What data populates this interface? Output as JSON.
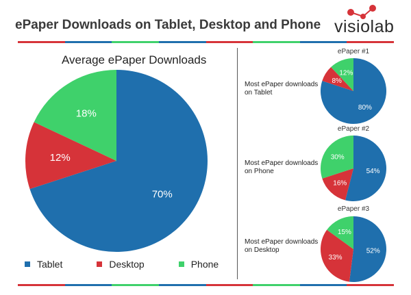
{
  "header": {
    "title": "ePaper Downloads on Tablet, Desktop and Phone",
    "logo_text": "visiolab"
  },
  "colors": {
    "tablet": "#1f6fad",
    "desktop": "#d63339",
    "phone": "#3fd16b",
    "stripe": [
      "#d63339",
      "#1f6fad",
      "#3fd16b",
      "#1f6fad",
      "#d63339",
      "#3fd16b",
      "#1f6fad",
      "#d63339"
    ],
    "logo": "#d63339"
  },
  "legend": {
    "tablet": "Tablet",
    "desktop": "Desktop",
    "phone": "Phone"
  },
  "chart_data": [
    {
      "type": "pie",
      "title": "Average ePaper Downloads",
      "labels": [
        "Tablet",
        "Desktop",
        "Phone"
      ],
      "values": [
        70,
        12,
        18
      ],
      "value_labels": [
        "70%",
        "12%",
        "18%"
      ]
    },
    {
      "type": "pie",
      "title": "ePaper #1",
      "subtitle": "Most ePaper downloads on Tablet",
      "labels": [
        "Tablet",
        "Desktop",
        "Phone"
      ],
      "values": [
        80,
        8,
        12
      ],
      "value_labels": [
        "80%",
        "8%",
        "12%"
      ]
    },
    {
      "type": "pie",
      "title": "ePaper #2",
      "subtitle": "Most ePaper downloads on Phone",
      "labels": [
        "Tablet",
        "Desktop",
        "Phone"
      ],
      "values": [
        54,
        16,
        30
      ],
      "value_labels": [
        "54%",
        "16%",
        "30%"
      ]
    },
    {
      "type": "pie",
      "title": "ePaper #3",
      "subtitle": "Most ePaper downloads on Desktop",
      "labels": [
        "Tablet",
        "Desktop",
        "Phone"
      ],
      "values": [
        52,
        33,
        15
      ],
      "value_labels": [
        "52%",
        "33%",
        "15%"
      ]
    }
  ]
}
